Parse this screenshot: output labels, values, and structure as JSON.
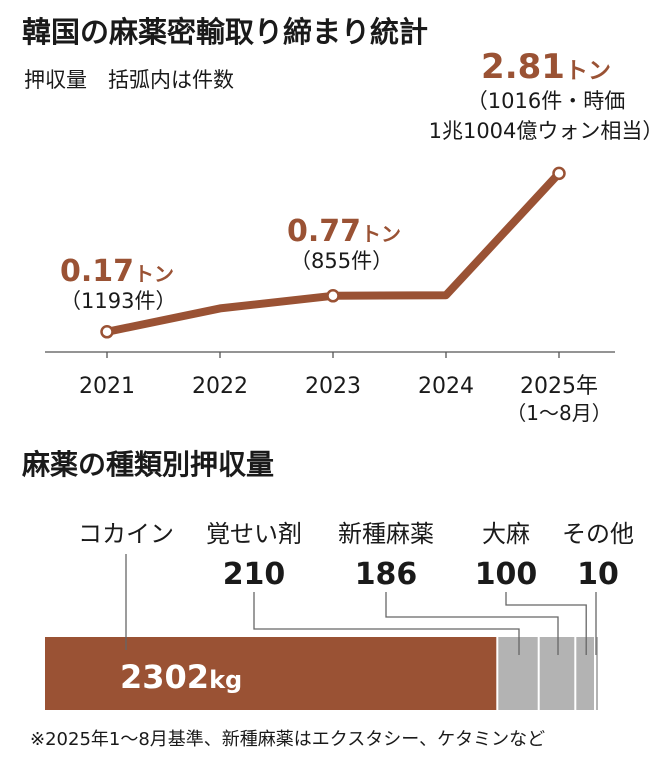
{
  "top_chart": {
    "title": "韓国の麻薬密輸取り締まり統計",
    "subtitle": "押収量　括弧内は件数"
  },
  "bottom_chart": {
    "title": "麻薬の種類別押収量",
    "footnote": "※2025年1～8月基準、新種麻薬はエクスタシー、ケタミンなど"
  },
  "colors": {
    "accent": "#9a5234",
    "bar_gray": "#b3b3b3",
    "text": "#1a1a1a",
    "leader": "#666666"
  },
  "chart_data": [
    {
      "type": "line",
      "x": [
        "2021",
        "2022",
        "2023",
        "2024",
        "2025"
      ],
      "values": [
        0.17,
        0.56,
        0.77,
        0.78,
        2.81
      ],
      "ylim": [
        0,
        3
      ],
      "grid": false,
      "tick_labels": [
        "2021",
        "2022",
        "2023",
        "2024",
        "2025年"
      ],
      "tick_sub_label": "（1～8月）",
      "annotations": [
        {
          "x": "2021",
          "value_text": "0.17",
          "unit": "トン",
          "detail": [
            "（1193件）"
          ]
        },
        {
          "x": "2023",
          "value_text": "0.77",
          "unit": "トン",
          "detail": [
            "（855件）"
          ]
        },
        {
          "x": "2025",
          "value_text": "2.81",
          "unit": "トン",
          "detail": [
            "（1016件・時価",
            "1兆1004億ウォン相当）"
          ]
        }
      ]
    },
    {
      "type": "bar",
      "orientation": "horizontal-stacked",
      "categories": [
        "コカイン",
        "覚せい剤",
        "新種麻薬",
        "大麻",
        "その他"
      ],
      "values": [
        2302,
        210,
        186,
        100,
        10
      ],
      "value_labels": [
        "2302",
        "210",
        "186",
        "100",
        "10"
      ],
      "unit": "kg"
    }
  ]
}
